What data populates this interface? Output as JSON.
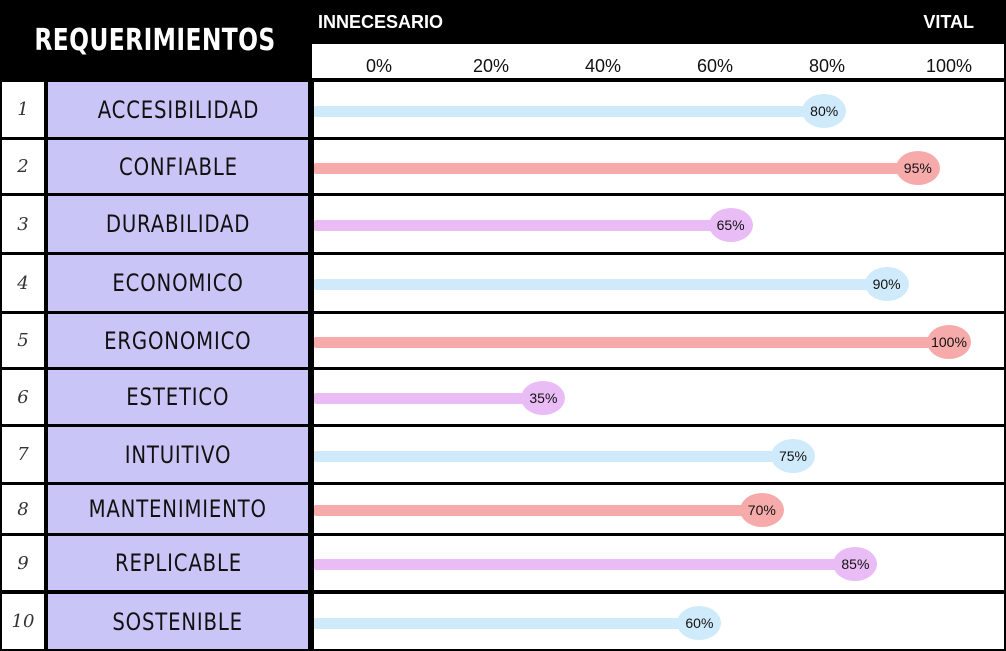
{
  "header": {
    "title": "REQUERIMIENTOS",
    "low_label": "INNECESARIO",
    "high_label": "VITAL"
  },
  "chart_data": {
    "type": "bar",
    "orientation": "horizontal",
    "title": "REQUERIMIENTOS",
    "xlabel": "",
    "ylabel": "",
    "xlim": [
      0,
      100
    ],
    "ticks": [
      "0%",
      "20%",
      "40%",
      "60%",
      "80%",
      "100%"
    ],
    "grid": false,
    "legend": "none",
    "rows": [
      {
        "num": "1",
        "label": "ACCESIBILIDAD",
        "value": 80,
        "value_label": "80%",
        "color": "#cfeafa"
      },
      {
        "num": "2",
        "label": "CONFIABLE",
        "value": 95,
        "value_label": "95%",
        "color": "#f7aaaa"
      },
      {
        "num": "3",
        "label": "DURABILIDAD",
        "value": 65,
        "value_label": "65%",
        "color": "#eabcf6"
      },
      {
        "num": "4",
        "label": "ECONOMICO",
        "value": 90,
        "value_label": "90%",
        "color": "#cfeafa"
      },
      {
        "num": "5",
        "label": "ERGONOMICO",
        "value": 100,
        "value_label": "100%",
        "color": "#f7aaaa"
      },
      {
        "num": "6",
        "label": "ESTETICO",
        "value": 35,
        "value_label": "35%",
        "color": "#eabcf6"
      },
      {
        "num": "7",
        "label": "INTUITIVO",
        "value": 75,
        "value_label": "75%",
        "color": "#cfeafa"
      },
      {
        "num": "8",
        "label": "MANTENIMIENTO",
        "value": 70,
        "value_label": "70%",
        "color": "#f7aaaa"
      },
      {
        "num": "9",
        "label": "REPLICABLE",
        "value": 85,
        "value_label": "85%",
        "color": "#eabcf6"
      },
      {
        "num": "10",
        "label": "SOSTENIBLE",
        "value": 60,
        "value_label": "60%",
        "color": "#cfeafa"
      }
    ]
  },
  "colors": {
    "label_bg": "#c9c6f7",
    "header_bg": "#000000"
  }
}
